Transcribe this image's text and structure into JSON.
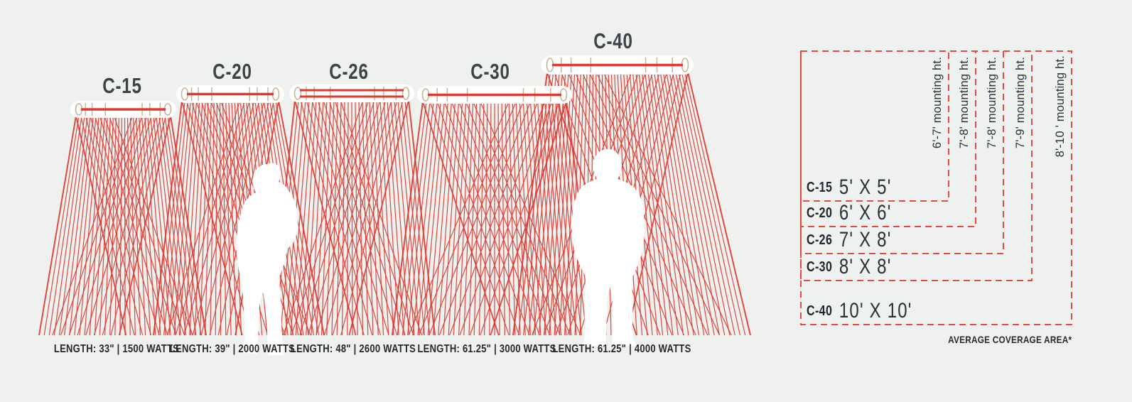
{
  "colors": {
    "background": "#eef1ee",
    "ray_red": "#dd3a33",
    "dash_red": "#e8483f",
    "bracket_tan": "#c8b697",
    "heading_gray": "#3f4347",
    "text_dark": "#1e2630"
  },
  "heaters": [
    {
      "model": "C-15",
      "spec": "LENGTH: 33\" | 1500 WATTS"
    },
    {
      "model": "C-20",
      "spec": "LENGTH: 39\" | 2000 WATTS"
    },
    {
      "model": "C-26",
      "spec": "LENGTH: 48\" | 2600 WATTS"
    },
    {
      "model": "C-30",
      "spec": "LENGTH: 61.25\" | 3000 WATTS"
    },
    {
      "model": "C-40",
      "spec": "LENGTH: 61.25\" | 4000 WATTS"
    }
  ],
  "coverage_chart": {
    "rows": [
      {
        "model": "C-15",
        "area": "5' X 5'",
        "mounting": "6'-7' mounting ht."
      },
      {
        "model": "C-20",
        "area": "6' X 6'",
        "mounting": "7'-8' mounting ht."
      },
      {
        "model": "C-26",
        "area": "7' X 8'",
        "mounting": "7'-8' mounting ht."
      },
      {
        "model": "C-30",
        "area": "8' X 8'",
        "mounting": "7'-9' mounting ht."
      },
      {
        "model": "C-40",
        "area": "10' X 10'",
        "mounting": "8'-10 ' mounting ht."
      }
    ],
    "footnote": "AVERAGE COVERAGE AREA*"
  }
}
